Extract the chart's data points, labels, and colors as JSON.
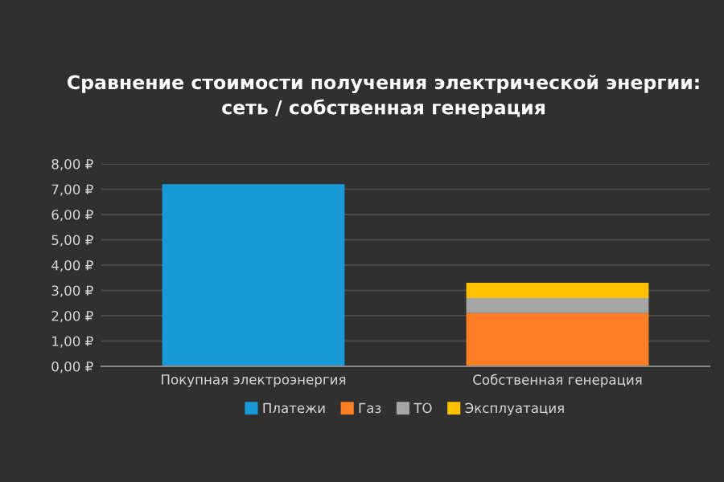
{
  "chart_data": {
    "type": "bar",
    "title": "Сравнение стоимости получения электрической энергии:\nсеть / собственная генерация",
    "categories": [
      "Покупная электроэнергия",
      "Собственная генерация"
    ],
    "stacked": true,
    "series": [
      {
        "name": "Платежи",
        "color": "#1a9ad6",
        "values": [
          7.2,
          null
        ]
      },
      {
        "name": "Газ",
        "color": "#ff7f27",
        "values": [
          null,
          2.1
        ]
      },
      {
        "name": "ТО",
        "color": "#a5a5a5",
        "values": [
          null,
          0.6
        ]
      },
      {
        "name": "Эксплуатация",
        "color": "#ffc000",
        "values": [
          null,
          0.6
        ]
      }
    ],
    "ylim": [
      0,
      8
    ],
    "yticks": [
      {
        "value": 0,
        "label": "0,00 ₽"
      },
      {
        "value": 1,
        "label": "1,00 ₽"
      },
      {
        "value": 2,
        "label": "2,00 ₽"
      },
      {
        "value": 3,
        "label": "3,00 ₽"
      },
      {
        "value": 4,
        "label": "4,00 ₽"
      },
      {
        "value": 5,
        "label": "5,00 ₽"
      },
      {
        "value": 6,
        "label": "6,00 ₽"
      },
      {
        "value": 7,
        "label": "7,00 ₽"
      },
      {
        "value": 8,
        "label": "8,00 ₽"
      }
    ],
    "grid": "y",
    "legend": "bottom"
  }
}
